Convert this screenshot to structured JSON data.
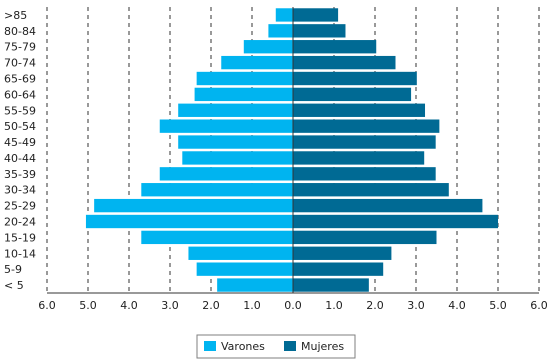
{
  "chart_data": {
    "type": "bar",
    "orientation": "horizontal-population-pyramid",
    "title": "",
    "xlabel": "",
    "ylabel": "",
    "categories": [
      "< 5",
      "5-9",
      "10-14",
      "15-19",
      "20-24",
      "25-29",
      "30-34",
      "35-39",
      "40-44",
      "45-49",
      "50-54",
      "55-59",
      "60-64",
      "65-69",
      "70-74",
      "75-79",
      "80-84",
      ">85"
    ],
    "series": [
      {
        "name": "Varones",
        "color": "#00B4F0",
        "side": "left",
        "values": [
          1.85,
          2.35,
          2.55,
          3.7,
          5.05,
          4.85,
          3.7,
          3.25,
          2.7,
          2.8,
          3.25,
          2.8,
          2.4,
          2.35,
          1.75,
          1.2,
          0.6,
          0.42
        ]
      },
      {
        "name": "Mujeres",
        "color": "#006A94",
        "side": "right",
        "values": [
          1.85,
          2.2,
          2.4,
          3.5,
          5.0,
          4.62,
          3.8,
          3.48,
          3.2,
          3.48,
          3.57,
          3.22,
          2.88,
          3.02,
          2.5,
          2.03,
          1.28,
          1.1
        ]
      }
    ],
    "x_ticks": [
      "6.0",
      "5.0",
      "4.0",
      "3.0",
      "2.0",
      "1.0",
      "0.0",
      "1.0",
      "2.0",
      "3.0",
      "4.0",
      "5.0",
      "6.0"
    ],
    "xlim": [
      -6,
      6
    ],
    "grid": "vertical-dashed",
    "legend_placement": "bottom-center"
  }
}
